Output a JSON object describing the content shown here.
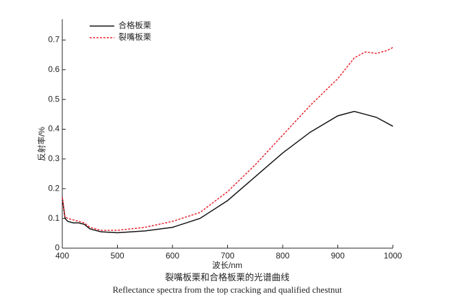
{
  "chart_data": {
    "type": "line",
    "x": [
      400,
      405,
      410,
      420,
      430,
      440,
      450,
      470,
      500,
      550,
      600,
      650,
      700,
      750,
      800,
      850,
      900,
      930,
      950,
      970,
      990,
      1000
    ],
    "series": [
      {
        "name": "合格板栗",
        "color": "#111111",
        "dash": false,
        "values": [
          0.17,
          0.1,
          0.09,
          0.085,
          0.085,
          0.08,
          0.065,
          0.055,
          0.052,
          0.058,
          0.07,
          0.1,
          0.16,
          0.24,
          0.32,
          0.39,
          0.445,
          0.46,
          0.45,
          0.44,
          0.42,
          0.41
        ]
      },
      {
        "name": "裂嘴板栗",
        "color": "#e8202a",
        "dash": true,
        "values": [
          0.17,
          0.105,
          0.1,
          0.095,
          0.09,
          0.085,
          0.07,
          0.06,
          0.06,
          0.07,
          0.09,
          0.12,
          0.19,
          0.28,
          0.38,
          0.48,
          0.57,
          0.64,
          0.66,
          0.655,
          0.665,
          0.675
        ]
      }
    ],
    "xlabel": "波长/nm",
    "ylabel": "反射率/%",
    "xlim": [
      400,
      1000
    ],
    "xticks": [
      400,
      500,
      600,
      700,
      800,
      900,
      1000
    ],
    "ylim": [
      0,
      0.77
    ],
    "yticks": [
      0,
      0.1,
      0.2,
      0.3,
      0.4,
      0.5,
      0.6,
      0.7
    ],
    "legend": "upper left",
    "caption": [
      "裂嘴板栗和合格板栗的光谱曲线",
      "Reflectance spectra from the top cracking and qualified chestnut"
    ]
  }
}
